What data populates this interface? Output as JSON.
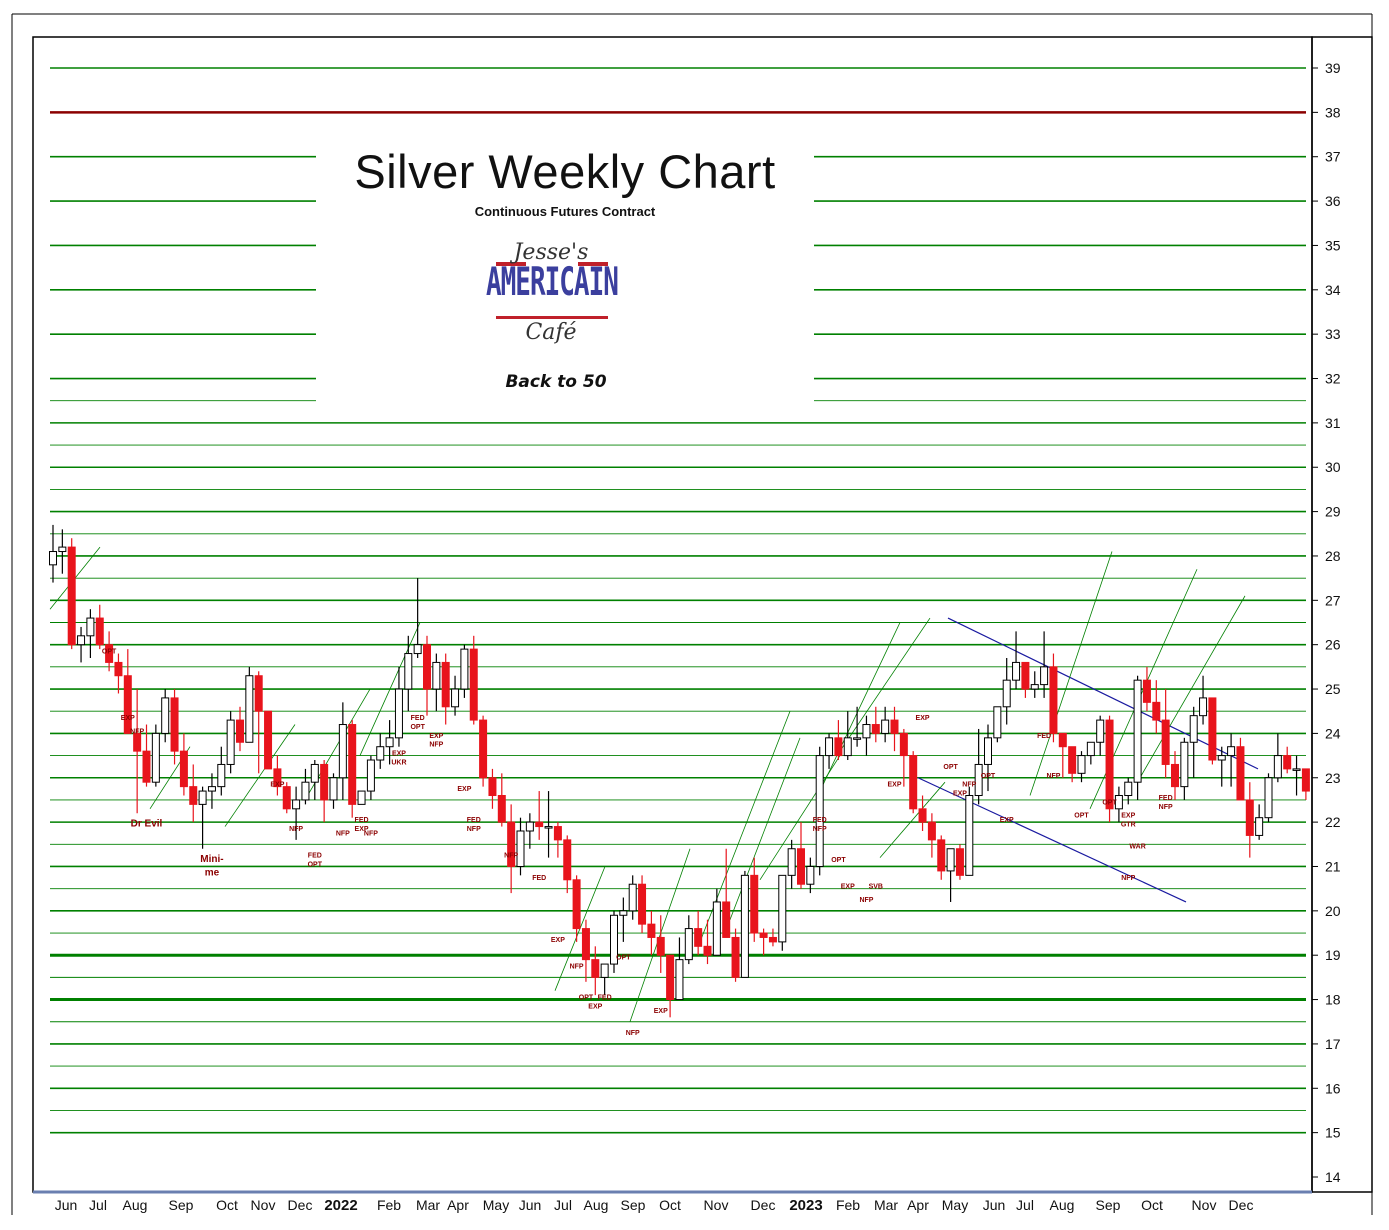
{
  "chart_data": {
    "type": "candlestick",
    "title": "Silver Weekly Chart",
    "subtitle": "Continuous Futures Contract",
    "logo": {
      "top": "Jesse's",
      "main": "AMERICAIN",
      "bottom": "Café"
    },
    "tagline": "Back to 50",
    "y_axis": {
      "side": "right",
      "ticks": [
        14,
        15,
        16,
        17,
        18,
        19,
        20,
        21,
        22,
        23,
        24,
        25,
        26,
        27,
        28,
        29,
        30,
        31,
        32,
        33,
        34,
        35,
        36,
        37,
        38,
        39
      ],
      "range": [
        14,
        39.5
      ]
    },
    "x_axis_labels": [
      "Jun",
      "Jul",
      "Aug",
      "Sep",
      "Oct",
      "Nov",
      "Dec",
      "2022",
      "Feb",
      "Mar",
      "Apr",
      "May",
      "Jun",
      "Jul",
      "Aug",
      "Sep",
      "Oct",
      "Nov",
      "Dec",
      "2023",
      "Feb",
      "Mar",
      "Apr",
      "May",
      "Jun",
      "Jul",
      "Aug",
      "Sep",
      "Oct",
      "Nov",
      "Dec"
    ],
    "colors": {
      "up": "#ffffff",
      "down": "#e8141c",
      "grid": "#008000",
      "resistance": "#8b0000",
      "channel": "#1a1aa0",
      "annotation": "#8b0000"
    },
    "reference_lines": [
      {
        "value": 38,
        "color": "#8b0000"
      }
    ],
    "candles": [
      [
        27.8,
        28.7,
        27.4,
        28.1
      ],
      [
        28.1,
        28.6,
        27.6,
        28.2
      ],
      [
        28.2,
        28.4,
        25.9,
        26.0
      ],
      [
        26.0,
        26.4,
        25.6,
        26.2
      ],
      [
        26.2,
        26.8,
        25.7,
        26.6
      ],
      [
        26.6,
        26.9,
        25.9,
        26.0
      ],
      [
        26.0,
        26.3,
        25.4,
        25.6
      ],
      [
        25.6,
        25.8,
        24.9,
        25.3
      ],
      [
        25.3,
        25.9,
        24.0,
        24.0
      ],
      [
        24.0,
        25.0,
        22.2,
        23.6
      ],
      [
        23.6,
        24.2,
        22.8,
        22.9
      ],
      [
        22.9,
        24.2,
        22.8,
        24.0
      ],
      [
        24.0,
        25.0,
        23.8,
        24.8
      ],
      [
        24.8,
        25.0,
        23.3,
        23.6
      ],
      [
        23.6,
        24.0,
        22.6,
        22.8
      ],
      [
        22.8,
        23.3,
        22.0,
        22.4
      ],
      [
        22.4,
        22.8,
        21.4,
        22.7
      ],
      [
        22.7,
        23.1,
        22.3,
        22.8
      ],
      [
        22.8,
        23.7,
        22.6,
        23.3
      ],
      [
        23.3,
        24.5,
        23.1,
        24.3
      ],
      [
        24.3,
        24.6,
        23.6,
        23.8
      ],
      [
        23.8,
        25.5,
        23.8,
        25.3
      ],
      [
        25.3,
        25.4,
        23.1,
        24.5
      ],
      [
        24.5,
        24.5,
        23.2,
        23.2
      ],
      [
        23.2,
        23.5,
        22.6,
        22.8
      ],
      [
        22.8,
        22.9,
        22.2,
        22.3
      ],
      [
        22.3,
        22.8,
        21.6,
        22.5
      ],
      [
        22.5,
        23.2,
        22.4,
        22.9
      ],
      [
        22.9,
        23.4,
        22.5,
        23.3
      ],
      [
        23.3,
        23.4,
        22.0,
        22.5
      ],
      [
        22.5,
        23.1,
        22.3,
        23.0
      ],
      [
        23.0,
        24.7,
        22.5,
        24.2
      ],
      [
        24.2,
        24.3,
        22.1,
        22.4
      ],
      [
        22.4,
        22.7,
        22.4,
        22.7
      ],
      [
        22.7,
        23.5,
        22.5,
        23.4
      ],
      [
        23.4,
        24.0,
        23.2,
        23.7
      ],
      [
        23.7,
        24.3,
        23.3,
        23.9
      ],
      [
        23.9,
        25.5,
        23.7,
        25.0
      ],
      [
        25.0,
        26.2,
        24.5,
        25.8
      ],
      [
        25.8,
        27.5,
        25.7,
        26.0
      ],
      [
        26.0,
        26.2,
        24.4,
        25.0
      ],
      [
        25.0,
        25.8,
        24.5,
        25.6
      ],
      [
        25.6,
        25.8,
        24.2,
        24.6
      ],
      [
        24.6,
        25.3,
        24.4,
        25.0
      ],
      [
        25.0,
        26.0,
        24.8,
        25.9
      ],
      [
        25.9,
        26.2,
        24.2,
        24.3
      ],
      [
        24.3,
        24.4,
        22.8,
        23.0
      ],
      [
        23.0,
        23.2,
        22.3,
        22.6
      ],
      [
        22.6,
        23.1,
        21.9,
        22.0
      ],
      [
        22.0,
        22.4,
        20.4,
        21.0
      ],
      [
        21.0,
        22.1,
        20.8,
        21.8
      ],
      [
        21.8,
        22.2,
        21.4,
        22.0
      ],
      [
        22.0,
        22.7,
        21.6,
        21.9
      ],
      [
        21.9,
        22.7,
        21.2,
        21.9
      ],
      [
        21.9,
        22.0,
        21.2,
        21.6
      ],
      [
        21.6,
        21.7,
        20.4,
        20.7
      ],
      [
        20.7,
        20.8,
        19.3,
        19.6
      ],
      [
        19.6,
        19.8,
        18.4,
        18.9
      ],
      [
        18.9,
        19.2,
        18.1,
        18.5
      ],
      [
        18.5,
        18.7,
        18.1,
        18.8
      ],
      [
        18.8,
        20.0,
        18.6,
        19.9
      ],
      [
        19.9,
        20.3,
        19.3,
        20.0
      ],
      [
        20.0,
        20.8,
        19.8,
        20.6
      ],
      [
        20.6,
        20.8,
        19.5,
        19.7
      ],
      [
        19.7,
        20.0,
        19.0,
        19.4
      ],
      [
        19.4,
        19.9,
        18.6,
        19.0
      ],
      [
        19.0,
        19.0,
        17.6,
        18.0
      ],
      [
        18.0,
        19.4,
        18.0,
        18.9
      ],
      [
        18.9,
        19.9,
        18.8,
        19.6
      ],
      [
        19.6,
        20.0,
        19.0,
        19.2
      ],
      [
        19.2,
        19.8,
        18.8,
        19.0
      ],
      [
        19.0,
        20.5,
        19.0,
        20.2
      ],
      [
        20.2,
        21.4,
        19.4,
        19.4
      ],
      [
        19.4,
        19.6,
        18.4,
        18.5
      ],
      [
        18.5,
        20.9,
        18.5,
        20.8
      ],
      [
        20.8,
        21.2,
        19.3,
        19.5
      ],
      [
        19.5,
        19.6,
        19.0,
        19.4
      ],
      [
        19.4,
        19.6,
        19.2,
        19.3
      ],
      [
        19.3,
        20.8,
        19.1,
        20.8
      ],
      [
        20.8,
        21.6,
        20.5,
        21.4
      ],
      [
        21.4,
        22.0,
        20.5,
        20.6
      ],
      [
        20.6,
        21.2,
        20.4,
        21.0
      ],
      [
        21.0,
        23.7,
        20.8,
        23.5
      ],
      [
        23.5,
        24.0,
        23.2,
        23.9
      ],
      [
        23.9,
        24.3,
        23.4,
        23.5
      ],
      [
        23.5,
        24.5,
        23.4,
        23.9
      ],
      [
        23.9,
        24.6,
        23.7,
        23.9
      ],
      [
        23.9,
        24.4,
        23.5,
        24.2
      ],
      [
        24.2,
        24.6,
        23.8,
        24.0
      ],
      [
        24.0,
        24.6,
        23.8,
        24.3
      ],
      [
        24.3,
        24.6,
        23.6,
        24.0
      ],
      [
        24.0,
        24.1,
        22.8,
        23.5
      ],
      [
        23.5,
        23.6,
        22.2,
        22.3
      ],
      [
        22.3,
        22.6,
        21.8,
        22.0
      ],
      [
        22.0,
        22.2,
        21.2,
        21.6
      ],
      [
        21.6,
        21.7,
        20.7,
        20.9
      ],
      [
        20.9,
        21.3,
        20.2,
        21.4
      ],
      [
        21.4,
        21.5,
        20.7,
        20.8
      ],
      [
        20.8,
        22.8,
        20.8,
        22.6
      ],
      [
        22.6,
        24.1,
        22.4,
        23.3
      ],
      [
        23.3,
        24.2,
        22.7,
        23.9
      ],
      [
        23.9,
        24.6,
        23.8,
        24.6
      ],
      [
        24.6,
        25.7,
        24.2,
        25.2
      ],
      [
        25.2,
        26.3,
        25.0,
        25.6
      ],
      [
        25.6,
        25.6,
        24.8,
        25.0
      ],
      [
        25.0,
        25.4,
        24.8,
        25.1
      ],
      [
        25.1,
        26.3,
        24.8,
        25.5
      ],
      [
        25.5,
        25.8,
        23.8,
        24.0
      ],
      [
        24.0,
        24.0,
        23.0,
        23.7
      ],
      [
        23.7,
        23.7,
        22.9,
        23.1
      ],
      [
        23.1,
        23.6,
        22.9,
        23.5
      ],
      [
        23.5,
        23.7,
        23.3,
        23.8
      ],
      [
        23.8,
        24.4,
        23.5,
        24.3
      ],
      [
        24.3,
        24.4,
        22.0,
        22.3
      ],
      [
        22.3,
        22.8,
        22.0,
        22.6
      ],
      [
        22.6,
        23.0,
        22.4,
        22.9
      ],
      [
        22.9,
        25.3,
        22.5,
        25.2
      ],
      [
        25.2,
        25.5,
        24.5,
        24.7
      ],
      [
        24.7,
        25.2,
        24.0,
        24.3
      ],
      [
        24.3,
        25.0,
        23.0,
        23.3
      ],
      [
        23.3,
        23.6,
        22.5,
        22.8
      ],
      [
        22.8,
        23.9,
        22.5,
        23.8
      ],
      [
        23.8,
        24.6,
        23.0,
        24.4
      ],
      [
        24.4,
        25.3,
        24.2,
        24.8
      ],
      [
        24.8,
        24.8,
        23.3,
        23.4
      ],
      [
        23.4,
        23.7,
        22.8,
        23.5
      ],
      [
        23.5,
        24.0,
        22.8,
        23.7
      ],
      [
        23.7,
        23.9,
        22.5,
        22.5
      ],
      [
        22.5,
        22.9,
        21.2,
        21.7
      ],
      [
        21.7,
        22.4,
        21.6,
        22.1
      ],
      [
        22.1,
        23.1,
        22.0,
        23.0
      ],
      [
        23.0,
        24.0,
        22.9,
        23.5
      ],
      [
        23.5,
        23.7,
        23.1,
        23.2
      ],
      [
        23.2,
        23.5,
        22.6,
        23.2
      ],
      [
        23.2,
        23.2,
        22.5,
        22.7
      ]
    ],
    "annotations": [
      {
        "text": "OPT",
        "x_week": 6,
        "y": 25.8
      },
      {
        "text": "EXP",
        "x_week": 8,
        "y": 24.3
      },
      {
        "text": "NFP",
        "x_week": 9,
        "y": 24.0
      },
      {
        "text": "Dr Evil",
        "x_week": 10,
        "y": 21.9
      },
      {
        "text": "Mini-",
        "x_week": 17,
        "y": 21.1
      },
      {
        "text": "me",
        "x_week": 17,
        "y": 20.8
      },
      {
        "text": "EXP",
        "x_week": 24,
        "y": 22.8
      },
      {
        "text": "NFP",
        "x_week": 26,
        "y": 21.8
      },
      {
        "text": "FED",
        "x_week": 28,
        "y": 21.2
      },
      {
        "text": "OPT",
        "x_week": 28,
        "y": 21.0
      },
      {
        "text": "NFP",
        "x_week": 31,
        "y": 21.7
      },
      {
        "text": "FED",
        "x_week": 33,
        "y": 22.0
      },
      {
        "text": "EXP",
        "x_week": 33,
        "y": 21.8
      },
      {
        "text": "NFP",
        "x_week": 34,
        "y": 21.7
      },
      {
        "text": "EXP",
        "x_week": 37,
        "y": 23.5
      },
      {
        "text": "UKR",
        "x_week": 37,
        "y": 23.3
      },
      {
        "text": "FED",
        "x_week": 39,
        "y": 24.3
      },
      {
        "text": "OPT",
        "x_week": 39,
        "y": 24.1
      },
      {
        "text": "EXP",
        "x_week": 41,
        "y": 23.9
      },
      {
        "text": "NFP",
        "x_week": 41,
        "y": 23.7
      },
      {
        "text": "EXP",
        "x_week": 44,
        "y": 22.7
      },
      {
        "text": "FED",
        "x_week": 45,
        "y": 22.0
      },
      {
        "text": "NFP",
        "x_week": 45,
        "y": 21.8
      },
      {
        "text": "NFP",
        "x_week": 49,
        "y": 21.2
      },
      {
        "text": "FED",
        "x_week": 52,
        "y": 20.7
      },
      {
        "text": "EXP",
        "x_week": 54,
        "y": 19.3
      },
      {
        "text": "NFP",
        "x_week": 56,
        "y": 18.7
      },
      {
        "text": "OPT",
        "x_week": 57,
        "y": 18.0
      },
      {
        "text": "EXP",
        "x_week": 58,
        "y": 17.8
      },
      {
        "text": "FED",
        "x_week": 59,
        "y": 18.0
      },
      {
        "text": "OPT",
        "x_week": 61,
        "y": 18.9
      },
      {
        "text": "NFP",
        "x_week": 62,
        "y": 17.2
      },
      {
        "text": "EXP",
        "x_week": 65,
        "y": 17.7
      },
      {
        "text": "FED",
        "x_week": 82,
        "y": 22.0
      },
      {
        "text": "NFP",
        "x_week": 82,
        "y": 21.8
      },
      {
        "text": "OPT",
        "x_week": 84,
        "y": 21.1
      },
      {
        "text": "EXP",
        "x_week": 85,
        "y": 20.5
      },
      {
        "text": "NFP",
        "x_week": 87,
        "y": 20.2
      },
      {
        "text": "SVB",
        "x_week": 88,
        "y": 20.5
      },
      {
        "text": "EXP",
        "x_week": 90,
        "y": 22.8
      },
      {
        "text": "EXP",
        "x_week": 93,
        "y": 24.3
      },
      {
        "text": "OPT",
        "x_week": 96,
        "y": 23.2
      },
      {
        "text": "EXP",
        "x_week": 97,
        "y": 22.6
      },
      {
        "text": "NFP",
        "x_week": 98,
        "y": 22.8
      },
      {
        "text": "OPT",
        "x_week": 100,
        "y": 23.0
      },
      {
        "text": "EXP",
        "x_week": 102,
        "y": 22.0
      },
      {
        "text": "FED",
        "x_week": 106,
        "y": 23.9
      },
      {
        "text": "NFP",
        "x_week": 107,
        "y": 23.0
      },
      {
        "text": "OPT",
        "x_week": 110,
        "y": 22.1
      },
      {
        "text": "OPT",
        "x_week": 113,
        "y": 22.4
      },
      {
        "text": "EXP",
        "x_week": 115,
        "y": 22.1
      },
      {
        "text": "GTR",
        "x_week": 115,
        "y": 21.9
      },
      {
        "text": "WAR",
        "x_week": 116,
        "y": 21.4
      },
      {
        "text": "NFP",
        "x_week": 115,
        "y": 20.7
      },
      {
        "text": "FED",
        "x_week": 119,
        "y": 22.5
      },
      {
        "text": "NFP",
        "x_week": 119,
        "y": 22.3
      }
    ]
  }
}
